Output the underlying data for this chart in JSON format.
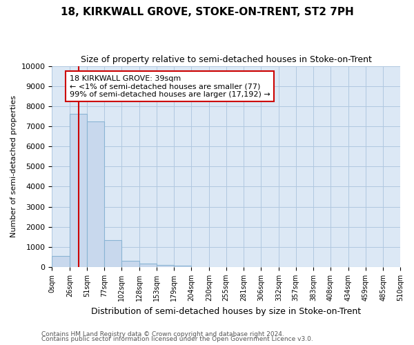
{
  "title1": "18, KIRKWALL GROVE, STOKE-ON-TRENT, ST2 7PH",
  "title2": "Size of property relative to semi-detached houses in Stoke-on-Trent",
  "xlabel": "Distribution of semi-detached houses by size in Stoke-on-Trent",
  "ylabel": "Number of semi-detached properties",
  "footer1": "Contains HM Land Registry data © Crown copyright and database right 2024.",
  "footer2": "Contains public sector information licensed under the Open Government Licence v3.0.",
  "annotation_line1": "18 KIRKWALL GROVE: 39sqm",
  "annotation_line2": "← <1% of semi-detached houses are smaller (77)",
  "annotation_line3": "99% of semi-detached houses are larger (17,192) →",
  "property_size": 39,
  "bin_edges": [
    0,
    26,
    51,
    77,
    102,
    128,
    153,
    179,
    204,
    230,
    255,
    281,
    306,
    332,
    357,
    383,
    408,
    434,
    459,
    485,
    510
  ],
  "bar_heights": [
    550,
    7600,
    7250,
    1350,
    300,
    170,
    100,
    60,
    0,
    0,
    0,
    0,
    0,
    0,
    0,
    0,
    0,
    0,
    0,
    0
  ],
  "bar_color": "#c8d8ed",
  "bar_edge_color": "#8ab4d4",
  "line_color": "#cc0000",
  "annotation_box_color": "#cc0000",
  "plot_bg_color": "#dce8f5",
  "background_color": "#ffffff",
  "grid_color": "#b0c8e0",
  "ylim": [
    0,
    10000
  ],
  "yticks": [
    0,
    1000,
    2000,
    3000,
    4000,
    5000,
    6000,
    7000,
    8000,
    9000,
    10000
  ],
  "xtick_labels": [
    "0sqm",
    "26sqm",
    "51sqm",
    "77sqm",
    "102sqm",
    "128sqm",
    "153sqm",
    "179sqm",
    "204sqm",
    "230sqm",
    "255sqm",
    "281sqm",
    "306sqm",
    "332sqm",
    "357sqm",
    "383sqm",
    "408sqm",
    "434sqm",
    "459sqm",
    "485sqm",
    "510sqm"
  ]
}
